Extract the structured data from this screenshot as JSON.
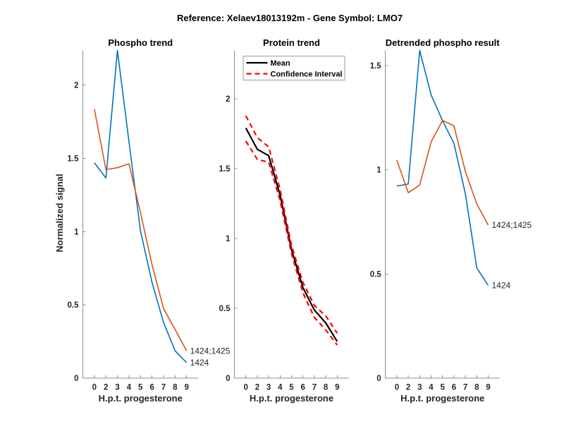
{
  "figure": {
    "title": "Reference:  Xelaev18013192m - Gene Symbol:  LMO7"
  },
  "chart_data": [
    {
      "type": "line",
      "title": "Phospho trend",
      "xlabel": "H.p.t. progesterone",
      "ylabel": "Normalized signal",
      "categories": [
        "0",
        "2",
        "3",
        "4",
        "5",
        "6",
        "7",
        "8",
        "9"
      ],
      "ylim": [
        0,
        2.236
      ],
      "yticks": [
        "0",
        "0.5",
        "1",
        "1.5",
        "2"
      ],
      "grid": false,
      "series": [
        {
          "name": "1424",
          "color": "#0072BD",
          "values": [
            1.47,
            1.365,
            2.236,
            1.615,
            1.005,
            0.654,
            0.38,
            0.187,
            0.106
          ]
        },
        {
          "name": "1424;1425",
          "color": "#D95319",
          "values": [
            1.836,
            1.423,
            1.436,
            1.463,
            1.13,
            0.775,
            0.475,
            0.333,
            0.186
          ]
        }
      ]
    },
    {
      "type": "line",
      "title": "Protein trend",
      "xlabel": "H.p.t. progesterone",
      "ylabel": "",
      "categories": [
        "0",
        "2",
        "3",
        "4",
        "5",
        "6",
        "7",
        "8",
        "9"
      ],
      "ylim": [
        0,
        2.345
      ],
      "yticks": [
        "0",
        "0.5",
        "1",
        "1.5",
        "2"
      ],
      "grid": false,
      "series": [
        {
          "name": "Mean",
          "color": "#000000",
          "values": [
            1.79,
            1.638,
            1.592,
            1.31,
            0.92,
            0.648,
            0.487,
            0.395,
            0.262
          ]
        }
      ],
      "confidence_interval": {
        "name": "Confidence Interval",
        "color": "#FF0000",
        "upper": [
          1.877,
          1.722,
          1.655,
          1.35,
          0.95,
          0.685,
          0.52,
          0.445,
          0.322
        ],
        "lower": [
          1.697,
          1.566,
          1.545,
          1.27,
          0.89,
          0.61,
          0.435,
          0.345,
          0.237
        ]
      },
      "legend": {
        "location": "top-left"
      }
    },
    {
      "type": "line",
      "title": "Detrended phospho result",
      "xlabel": "H.p.t. progesterone",
      "ylabel": "",
      "categories": [
        "0",
        "2",
        "3",
        "4",
        "5",
        "6",
        "7",
        "8",
        "9"
      ],
      "ylim": [
        0,
        1.573
      ],
      "yticks": [
        "0",
        "0.5",
        "1",
        "1.5"
      ],
      "grid": false,
      "series": [
        {
          "name": "1424",
          "color": "#0072BD",
          "values": [
            0.922,
            0.932,
            1.573,
            1.36,
            1.236,
            1.127,
            0.885,
            0.529,
            0.445
          ]
        },
        {
          "name": "1424;1425",
          "color": "#D95319",
          "values": [
            1.046,
            0.89,
            0.927,
            1.134,
            1.237,
            1.211,
            0.992,
            0.836,
            0.735
          ]
        }
      ]
    }
  ]
}
